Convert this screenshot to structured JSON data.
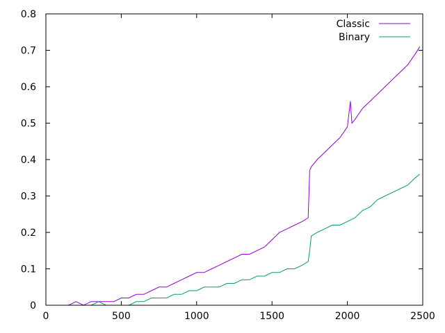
{
  "chart_data": {
    "type": "line",
    "title": "",
    "xlabel": "",
    "ylabel": "",
    "xlim": [
      0,
      2500
    ],
    "ylim": [
      0,
      0.8
    ],
    "x_ticks": [
      0,
      500,
      1000,
      1500,
      2000,
      2500
    ],
    "y_ticks": [
      0,
      0.1,
      0.2,
      0.3,
      0.4,
      0.5,
      0.6,
      0.7,
      0.8
    ],
    "x_tick_labels": [
      "0",
      "500",
      "1000",
      "1500",
      "2000",
      "2500"
    ],
    "y_tick_labels": [
      "0",
      "0.1",
      "0.2",
      "0.3",
      "0.4",
      "0.5",
      "0.6",
      "0.7",
      "0.8"
    ],
    "grid": false,
    "legend_position": "top-right",
    "series": [
      {
        "name": "Classic",
        "color": "#9400d3",
        "x": [
          100,
          150,
          200,
          250,
          300,
          350,
          400,
          450,
          500,
          550,
          600,
          650,
          700,
          750,
          800,
          850,
          900,
          950,
          1000,
          1050,
          1100,
          1150,
          1200,
          1250,
          1300,
          1350,
          1400,
          1450,
          1500,
          1550,
          1600,
          1650,
          1700,
          1740,
          1750,
          1760,
          1800,
          1850,
          1900,
          1950,
          2000,
          2020,
          2030,
          2050,
          2100,
          2150,
          2200,
          2250,
          2300,
          2350,
          2400,
          2450,
          2480
        ],
        "y": [
          0.0,
          0.0,
          0.01,
          0.0,
          0.01,
          0.01,
          0.01,
          0.01,
          0.02,
          0.02,
          0.03,
          0.03,
          0.04,
          0.05,
          0.05,
          0.06,
          0.07,
          0.08,
          0.09,
          0.09,
          0.1,
          0.11,
          0.12,
          0.13,
          0.14,
          0.14,
          0.15,
          0.16,
          0.18,
          0.2,
          0.21,
          0.22,
          0.23,
          0.24,
          0.37,
          0.38,
          0.4,
          0.42,
          0.44,
          0.46,
          0.49,
          0.56,
          0.5,
          0.51,
          0.54,
          0.56,
          0.58,
          0.6,
          0.62,
          0.64,
          0.66,
          0.69,
          0.71
        ]
      },
      {
        "name": "Binary",
        "color": "#009e73",
        "x": [
          100,
          150,
          200,
          250,
          300,
          350,
          400,
          450,
          500,
          550,
          600,
          650,
          700,
          750,
          800,
          850,
          900,
          950,
          1000,
          1050,
          1100,
          1150,
          1200,
          1250,
          1300,
          1350,
          1400,
          1450,
          1500,
          1550,
          1600,
          1650,
          1700,
          1740,
          1750,
          1760,
          1800,
          1850,
          1900,
          1950,
          2000,
          2050,
          2100,
          2150,
          2200,
          2250,
          2300,
          2350,
          2400,
          2450,
          2480
        ],
        "y": [
          0.0,
          0.0,
          0.0,
          0.0,
          0.0,
          0.01,
          0.0,
          0.0,
          0.0,
          0.0,
          0.01,
          0.01,
          0.02,
          0.02,
          0.02,
          0.03,
          0.03,
          0.04,
          0.04,
          0.05,
          0.05,
          0.05,
          0.06,
          0.06,
          0.07,
          0.07,
          0.08,
          0.08,
          0.09,
          0.09,
          0.1,
          0.1,
          0.11,
          0.12,
          0.15,
          0.19,
          0.2,
          0.21,
          0.22,
          0.22,
          0.23,
          0.24,
          0.26,
          0.27,
          0.29,
          0.3,
          0.31,
          0.32,
          0.33,
          0.35,
          0.36
        ]
      }
    ]
  }
}
